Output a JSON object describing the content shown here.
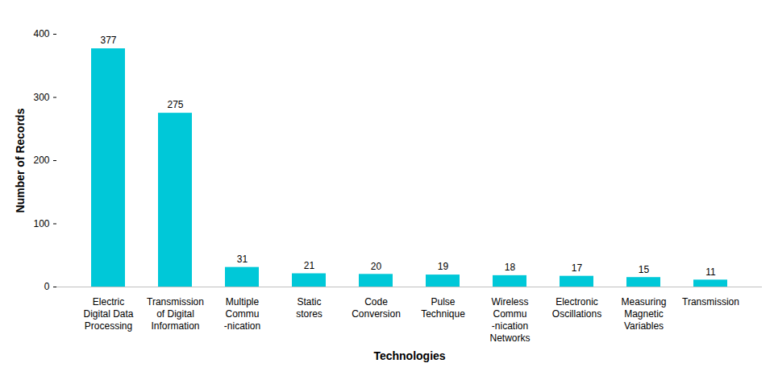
{
  "chart_data": {
    "type": "bar",
    "x_label": "Technologies",
    "y_label": "Number of Records",
    "categories": [
      "Electric\nDigital Data\nProcessing",
      "Transmission\nof Digital\nInformation",
      "Multiple\nCommu\n-nication",
      "Static\nstores",
      "Code\nConversion",
      "Pulse\nTechnique",
      "Wireless\nCommu\n-nication\nNetworks",
      "Electronic\nOscillations",
      "Measuring\nMagnetic\nVariables",
      "Transmission"
    ],
    "values": [
      377,
      275,
      31,
      21,
      20,
      19,
      18,
      17,
      15,
      11
    ],
    "color": "#00c8d8",
    "ylim": [
      0,
      400
    ],
    "yticks": [
      0,
      100,
      200,
      300,
      400
    ],
    "grid": false,
    "data_labels": true
  }
}
